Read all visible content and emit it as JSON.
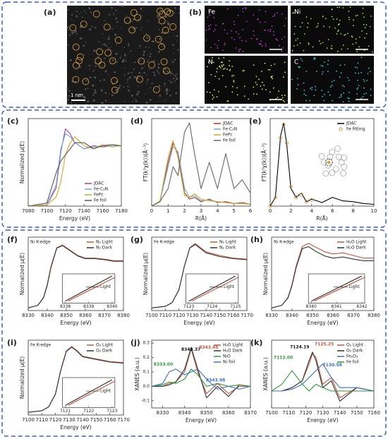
{
  "image_panels": {
    "a": {
      "label": "(a)",
      "scale": "1 nm"
    },
    "b": {
      "label": "(b)",
      "maps": [
        {
          "name": "Fe",
          "color": "#b03cc8"
        },
        {
          "name": "Ni",
          "color": "#9be04a"
        },
        {
          "name": "N",
          "color": "#e8e84a"
        },
        {
          "name": "C",
          "color": "#3cc8d8"
        }
      ]
    }
  },
  "chart_data": [
    {
      "type": "line",
      "label": "(c)",
      "xlabel": "Energy (eV)",
      "ylabel": "Normalized μ(E)",
      "xlim": [
        7080,
        7180
      ],
      "ylim": [
        0,
        1.45
      ],
      "xticks": [
        7080,
        7100,
        7120,
        7140,
        7160,
        7180
      ],
      "legend": "lower right",
      "x": [
        7080,
        7100,
        7110,
        7115,
        7120,
        7125,
        7130,
        7140,
        7150,
        7160,
        7170,
        7180
      ],
      "series": [
        {
          "name": "JDAC",
          "color": "#a040b0",
          "values": [
            0,
            0.02,
            0.3,
            0.9,
            1.28,
            1.2,
            1.05,
            0.95,
            1.0,
            0.98,
            1.0,
            1.0
          ]
        },
        {
          "name": "Fe-C₃N",
          "color": "#6aa8e0",
          "values": [
            0,
            0.02,
            0.35,
            0.95,
            1.2,
            1.15,
            1.05,
            0.95,
            0.98,
            1.0,
            1.0,
            1.0
          ]
        },
        {
          "name": "FePc",
          "color": "#d4aa20",
          "values": [
            0,
            0.02,
            0.15,
            0.4,
            0.85,
            1.05,
            1.15,
            1.0,
            0.95,
            1.02,
            0.98,
            1.0
          ]
        },
        {
          "name": "Fe foil",
          "color": "#555555",
          "values": [
            0,
            0.05,
            0.55,
            0.75,
            0.85,
            0.95,
            1.05,
            1.05,
            0.95,
            1.0,
            1.02,
            1.0
          ]
        }
      ]
    },
    {
      "type": "line",
      "label": "(d)",
      "xlabel": "R(Å)",
      "ylabel": "FT(k³χ(k))(Å⁻³)",
      "xlim": [
        0,
        6
      ],
      "ylim": [
        0,
        1
      ],
      "xticks": [
        0,
        1,
        2,
        3,
        4,
        5,
        6
      ],
      "legend": "upper right",
      "x": [
        0,
        0.5,
        1,
        1.3,
        1.6,
        2,
        2.3,
        2.6,
        3,
        3.5,
        4,
        4.5,
        5,
        5.5,
        6
      ],
      "series": [
        {
          "name": "JDAC",
          "color": "#b03030",
          "values": [
            0,
            0.05,
            0.5,
            0.72,
            0.6,
            0.15,
            0.08,
            0.1,
            0.05,
            0.08,
            0.04,
            0.05,
            0.03,
            0.04,
            0.02
          ]
        },
        {
          "name": "Fe-C₃N",
          "color": "#6aa8e0",
          "values": [
            0,
            0.05,
            0.45,
            0.68,
            0.62,
            0.2,
            0.1,
            0.12,
            0.06,
            0.07,
            0.05,
            0.04,
            0.03,
            0.03,
            0.02
          ]
        },
        {
          "name": "FePc",
          "color": "#d4aa20",
          "values": [
            0,
            0.06,
            0.55,
            0.75,
            0.55,
            0.12,
            0.1,
            0.14,
            0.08,
            0.06,
            0.05,
            0.04,
            0.03,
            0.03,
            0.02
          ]
        },
        {
          "name": "Fe foil",
          "color": "#666666",
          "values": [
            0,
            0.05,
            0.2,
            0.45,
            0.35,
            0.85,
            0.95,
            0.6,
            0.2,
            0.5,
            0.2,
            0.6,
            0.2,
            0.3,
            0.15
          ]
        }
      ]
    },
    {
      "type": "line",
      "label": "(e)",
      "xlabel": "R(Å)",
      "ylabel": "FT(k³χ(k))(Å⁻³)",
      "xlim": [
        0,
        10
      ],
      "ylim": [
        0,
        1
      ],
      "xticks": [
        0,
        2,
        4,
        6,
        8,
        10
      ],
      "legend": "upper right",
      "x": [
        0,
        0.5,
        1,
        1.3,
        1.6,
        2,
        2.5,
        3,
        3.5,
        4,
        5,
        6,
        7,
        8,
        9,
        10
      ],
      "series": [
        {
          "name": "JDAC",
          "color": "#000000",
          "values": [
            0,
            0.1,
            0.8,
            0.95,
            0.7,
            0.2,
            0.1,
            0.15,
            0.05,
            0.08,
            0.04,
            0.1,
            0.06,
            0.05,
            0.03,
            0.02
          ]
        },
        {
          "name": "Fe fitting",
          "color": "#e09030",
          "marker": "circle",
          "values": [
            0,
            0.1,
            0.78,
            0.93,
            0.72,
            0.22,
            0.1,
            0.13,
            0.05,
            0.07,
            null,
            null,
            null,
            null,
            null,
            null
          ]
        }
      ]
    },
    {
      "type": "line",
      "label": "(f)",
      "edge_label": "Ni K-edge",
      "xlabel": "Energy (eV)",
      "ylabel": "Normalized μ(E)",
      "xlim": [
        8330,
        8380
      ],
      "ylim": [
        0,
        1.4
      ],
      "xticks": [
        8330,
        8340,
        8350,
        8360,
        8370,
        8380
      ],
      "legend": "upper right",
      "inset": {
        "xticks": [
          8338,
          8339,
          8340
        ],
        "label": "Light"
      },
      "x": [
        8330,
        8335,
        8338,
        8340,
        8342,
        8345,
        8348,
        8352,
        8356,
        8360,
        8365,
        8370,
        8375,
        8380
      ],
      "series": [
        {
          "name": "N₂ Light",
          "color": "#c8553d",
          "values": [
            0.05,
            0.1,
            0.25,
            0.5,
            0.85,
            1.2,
            1.25,
            1.15,
            1.05,
            1.0,
            1.0,
            0.98,
            0.95,
            0.95
          ]
        },
        {
          "name": "N₂ Dark",
          "color": "#333333",
          "values": [
            0.05,
            0.1,
            0.24,
            0.48,
            0.83,
            1.19,
            1.24,
            1.14,
            1.04,
            0.99,
            0.99,
            0.97,
            0.94,
            0.94
          ]
        }
      ]
    },
    {
      "type": "line",
      "label": "(g)",
      "edge_label": "Fe K-edge",
      "xlabel": "Energy (eV)",
      "ylabel": "Normalized μ(E)",
      "xlim": [
        7100,
        7170
      ],
      "ylim": [
        0,
        1.4
      ],
      "xticks": [
        7100,
        7110,
        7120,
        7130,
        7140,
        7150,
        7160,
        7170
      ],
      "legend": "upper right",
      "inset": {
        "xticks": [
          7123,
          7124,
          7125
        ],
        "label": "Light"
      },
      "x": [
        7100,
        7110,
        7115,
        7120,
        7124,
        7128,
        7132,
        7136,
        7140,
        7150,
        7160,
        7170
      ],
      "series": [
        {
          "name": "N₂ Light",
          "color": "#c8553d",
          "values": [
            0.05,
            0.08,
            0.15,
            0.4,
            0.85,
            1.2,
            1.28,
            1.2,
            1.12,
            1.05,
            1.0,
            0.98
          ]
        },
        {
          "name": "N₂ Dark",
          "color": "#333333",
          "values": [
            0.05,
            0.08,
            0.15,
            0.39,
            0.84,
            1.19,
            1.26,
            1.18,
            1.1,
            1.03,
            0.99,
            0.97
          ]
        }
      ]
    },
    {
      "type": "line",
      "label": "(h)",
      "edge_label": "Ni K-edge",
      "xlabel": "Energy (eV)",
      "ylabel": "Normalized μ(E)",
      "xlim": [
        8330,
        8380
      ],
      "ylim": [
        0,
        1.4
      ],
      "xticks": [
        8330,
        8340,
        8350,
        8360,
        8370,
        8380
      ],
      "legend": "upper right",
      "inset": {
        "xticks": [
          8340,
          8341,
          8342
        ],
        "label": "Light"
      },
      "x": [
        8330,
        8335,
        8338,
        8340,
        8342,
        8345,
        8348,
        8352,
        8356,
        8360,
        8365,
        8370,
        8375,
        8380
      ],
      "series": [
        {
          "name": "H₂O Light",
          "color": "#c8553d",
          "values": [
            0.05,
            0.1,
            0.25,
            0.5,
            0.85,
            1.22,
            1.28,
            1.2,
            1.12,
            1.08,
            1.1,
            1.05,
            1.0,
            1.0
          ]
        },
        {
          "name": "H₂O Dark",
          "color": "#333333",
          "values": [
            0.05,
            0.1,
            0.24,
            0.48,
            0.82,
            1.18,
            1.22,
            1.12,
            1.04,
            1.0,
            1.02,
            0.98,
            0.95,
            0.95
          ]
        }
      ]
    },
    {
      "type": "line",
      "label": "(i)",
      "edge_label": "Fe K-edge",
      "xlabel": "Energy (eV)",
      "ylabel": "Normalized μ(E)",
      "xlim": [
        7100,
        7170
      ],
      "ylim": [
        0,
        1.4
      ],
      "xticks": [
        7100,
        7110,
        7120,
        7130,
        7140,
        7150,
        7160,
        7170
      ],
      "legend": "upper right",
      "inset": {
        "xticks": [
          7121,
          7122,
          7123
        ],
        "label": "Light"
      },
      "x": [
        7100,
        7110,
        7115,
        7120,
        7124,
        7128,
        7132,
        7136,
        7140,
        7150,
        7160,
        7170
      ],
      "series": [
        {
          "name": "O₂ Light",
          "color": "#c8553d",
          "values": [
            0.05,
            0.08,
            0.15,
            0.4,
            0.85,
            1.2,
            1.28,
            1.2,
            1.1,
            1.05,
            1.0,
            0.98
          ]
        },
        {
          "name": "O₂ Dark",
          "color": "#333333",
          "values": [
            0.05,
            0.08,
            0.15,
            0.39,
            0.84,
            1.19,
            1.27,
            1.19,
            1.09,
            1.04,
            0.99,
            0.97
          ]
        }
      ]
    },
    {
      "type": "line",
      "label": "(j)",
      "xlabel": "Energy (eV)",
      "ylabel": "XANES (a.u.)",
      "xlim": [
        8325,
        8370
      ],
      "ylim": [
        -0.15,
        0.32
      ],
      "xticks": [
        8330,
        8340,
        8350,
        8360,
        8370
      ],
      "yticks": [
        -0.1,
        {
          "value": 0,
          "label": "0.0"
        },
        0.1,
        0.2,
        0.3
      ],
      "legend": "upper right",
      "annotations": [
        {
          "text": "8343.37",
          "color": "#111111"
        },
        {
          "text": "8343.45",
          "color": "#c8553d"
        },
        {
          "text": "8333.00",
          "color": "#2a9a3a"
        },
        {
          "text": "8343.98",
          "color": "#3a70c8"
        }
      ],
      "x": [
        8325,
        8330,
        8333,
        8336,
        8340,
        8343,
        8346,
        8350,
        8355,
        8360,
        8365,
        8370
      ],
      "series": [
        {
          "name": "H₂O Light",
          "color": "#c8553d",
          "values": [
            0,
            0,
            0.02,
            0.03,
            0.1,
            0.26,
            0.1,
            -0.05,
            0.02,
            -0.05,
            0,
            0
          ]
        },
        {
          "name": "H₂O Dark",
          "color": "#333333",
          "values": [
            0,
            0,
            0.01,
            0.03,
            0.12,
            0.27,
            0.12,
            -0.08,
            0,
            -0.07,
            0.01,
            0
          ]
        },
        {
          "name": "NiO",
          "color": "#2a9a3a",
          "values": [
            0,
            0.01,
            0.03,
            0.02,
            0.05,
            0.12,
            0.08,
            0,
            0.02,
            0,
            0.01,
            0
          ]
        },
        {
          "name": "Ni foil",
          "color": "#3a70c8",
          "values": [
            0,
            0.02,
            0.1,
            0.12,
            0.08,
            0.1,
            0.12,
            0.05,
            -0.02,
            0,
            -0.02,
            0
          ]
        }
      ]
    },
    {
      "type": "line",
      "label": "(k)",
      "xlabel": "Energy (eV)",
      "ylabel": "XANES (a.u.)",
      "xlim": [
        7100,
        7160
      ],
      "ylim": [
        -0.05,
        0.15
      ],
      "xticks": [
        7100,
        7110,
        7120,
        7130,
        7140,
        7150,
        7160
      ],
      "legend": "upper right",
      "annotations": [
        {
          "text": "7124.19",
          "color": "#111111"
        },
        {
          "text": "7125.25",
          "color": "#c8553d"
        },
        {
          "text": "7112.00",
          "color": "#2a9a3a"
        },
        {
          "text": "7130.58",
          "color": "#3a70c8"
        }
      ],
      "x": [
        7100,
        7106,
        7112,
        7118,
        7122,
        7124,
        7126,
        7130,
        7135,
        7140,
        7150,
        7160
      ],
      "series": [
        {
          "name": "O₂ Light",
          "color": "#c8553d",
          "values": [
            0,
            0,
            0.01,
            0.03,
            0.08,
            0.11,
            0.1,
            0.02,
            0.04,
            -0.02,
            0.01,
            0
          ]
        },
        {
          "name": "O₂ Dark",
          "color": "#333333",
          "values": [
            0,
            0,
            0.01,
            0.03,
            0.09,
            0.115,
            0.09,
            0.01,
            0.03,
            -0.03,
            0.01,
            0
          ]
        },
        {
          "name": "Fe₂O₃",
          "color": "#3a70c8",
          "values": [
            0,
            0,
            0.005,
            0.02,
            0.04,
            0.05,
            0.06,
            0.08,
            0.04,
            0.01,
            0.01,
            0
          ]
        },
        {
          "name": "Fe foil",
          "color": "#2a9a3a",
          "values": [
            0,
            0.02,
            0.06,
            0.02,
            0,
            0.01,
            0.02,
            0.01,
            0,
            0,
            0,
            0
          ]
        }
      ]
    }
  ]
}
